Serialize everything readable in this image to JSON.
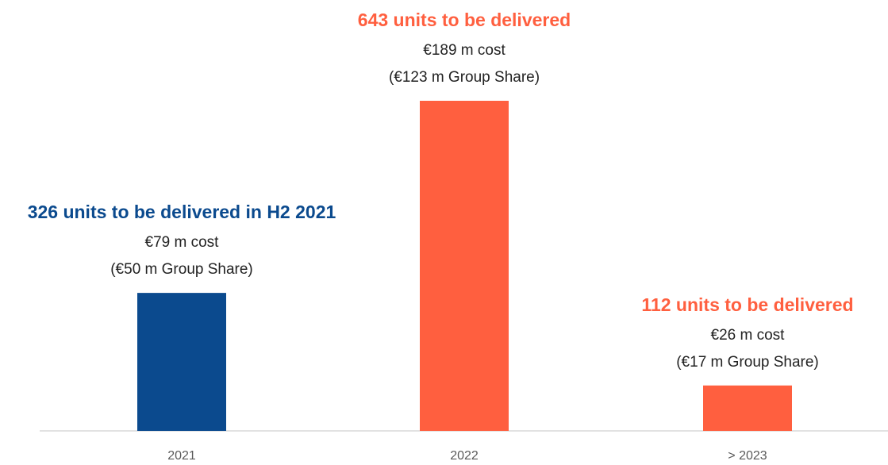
{
  "chart_data": {
    "type": "bar",
    "categories": [
      "2021",
      "2022",
      "> 2023"
    ],
    "values": [
      79,
      189,
      26
    ],
    "colors": [
      "#0b4a8e",
      "#ff5f3f",
      "#ff5f3f"
    ],
    "annotations": [
      {
        "title": "326 units to be delivered in H2 2021",
        "cost": "€79 m cost",
        "share": "(€50 m Group Share)"
      },
      {
        "title": "643 units to be delivered",
        "cost": "€189 m cost",
        "share": "(€123 m Group Share)"
      },
      {
        "title": "112 units to be delivered",
        "cost": "€26 m cost",
        "share": "(€17 m Group Share)"
      }
    ]
  }
}
